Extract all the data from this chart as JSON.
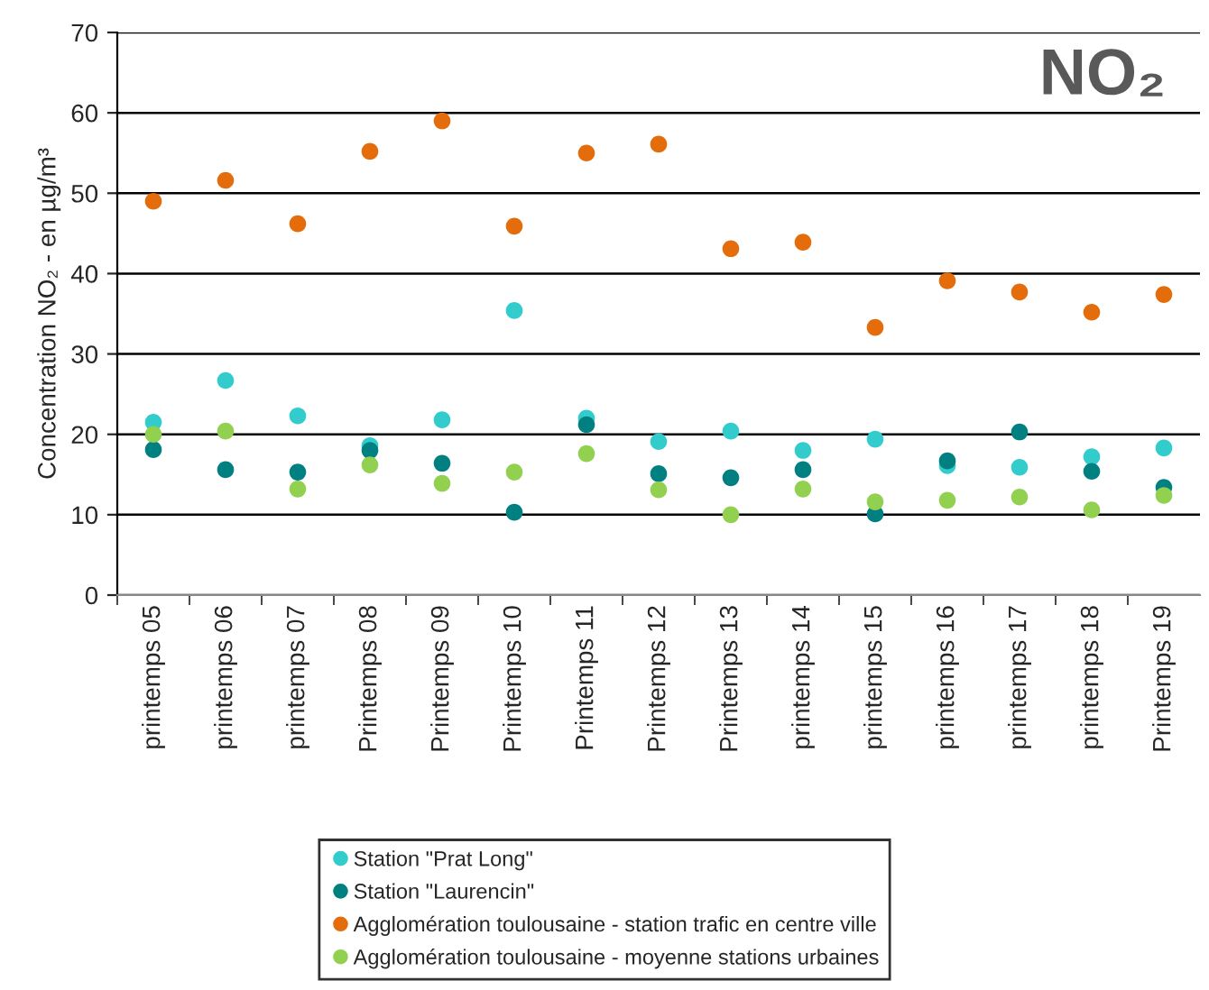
{
  "chart_data": {
    "type": "scatter",
    "ylabel": "Concentration NO₂ - en µg/m³",
    "categories": [
      "printemps 05",
      "printemps 06",
      "printemps 07",
      "Printemps 08",
      "Printemps 09",
      "Printemps 10",
      "Printemps 11",
      "Printemps 12",
      "Printemps 13",
      "printemps 14",
      "printemps 15",
      "printemps 16",
      "printemps 17",
      "printemps 18",
      "Printemps 19"
    ],
    "series": [
      {
        "name": "Station \"Prat Long\"",
        "color": "#33cccc",
        "values": [
          21.5,
          26.7,
          22.3,
          18.6,
          21.8,
          35.4,
          22,
          19.1,
          20.4,
          18,
          19.4,
          16.1,
          15.9,
          17.2,
          18.3
        ]
      },
      {
        "name": "Station \"Laurencin\"",
        "color": "#008080",
        "values": [
          18.1,
          15.6,
          15.3,
          18,
          16.4,
          10.3,
          21.2,
          15.1,
          14.6,
          15.6,
          10.1,
          16.7,
          20.3,
          15.4,
          13.4
        ]
      },
      {
        "name": "Agglomération toulousaine - station trafic en centre ville",
        "color": "#e46c0a",
        "values": [
          49,
          51.6,
          46.2,
          55.2,
          59,
          45.9,
          55,
          56.1,
          43.1,
          43.9,
          33.3,
          39.1,
          37.7,
          35.2,
          37.4
        ]
      },
      {
        "name": "Agglomération toulousaine - moyenne stations urbaines",
        "color": "#92d050",
        "values": [
          20,
          20.4,
          13.2,
          16.2,
          13.9,
          15.3,
          17.6,
          13.1,
          10,
          13.2,
          11.6,
          11.8,
          12.2,
          10.6,
          12.4
        ]
      }
    ],
    "annotations": [
      "NO₂"
    ],
    "ylim": [
      0,
      70
    ],
    "yticks": [
      0,
      10,
      20,
      30,
      40,
      50,
      60,
      70
    ],
    "grid": "y",
    "legend": "bottom",
    "marker": "circle"
  }
}
